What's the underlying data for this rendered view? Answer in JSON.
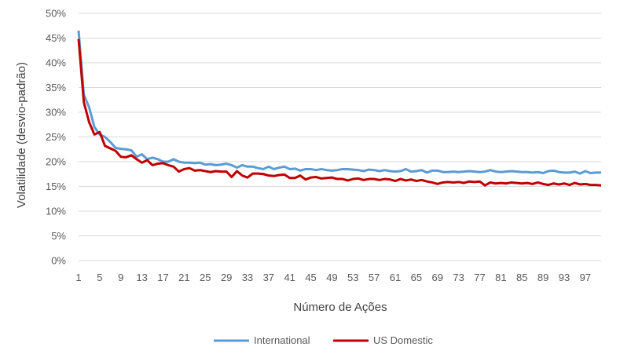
{
  "chart_data": {
    "type": "line",
    "xlabel": "Número de Ações",
    "ylabel": "Volatilidade (desvio-padrão)",
    "ylim": [
      0,
      0.5
    ],
    "xlim": [
      1,
      100
    ],
    "y_ticks": [
      "0%",
      "5%",
      "10%",
      "15%",
      "20%",
      "25%",
      "30%",
      "35%",
      "40%",
      "45%",
      "50%"
    ],
    "x_ticks": [
      1,
      5,
      9,
      13,
      17,
      21,
      25,
      29,
      33,
      37,
      41,
      45,
      49,
      53,
      57,
      61,
      65,
      69,
      73,
      77,
      81,
      85,
      89,
      93,
      97
    ],
    "grid": "horizontal",
    "legend_position": "bottom",
    "x": [
      1,
      2,
      3,
      4,
      5,
      6,
      7,
      8,
      9,
      10,
      11,
      12,
      13,
      14,
      15,
      16,
      17,
      18,
      19,
      20,
      21,
      22,
      23,
      24,
      25,
      26,
      27,
      28,
      29,
      30,
      31,
      32,
      33,
      34,
      35,
      36,
      37,
      38,
      39,
      40,
      41,
      42,
      43,
      44,
      45,
      46,
      47,
      48,
      49,
      50,
      51,
      52,
      53,
      54,
      55,
      56,
      57,
      58,
      59,
      60,
      61,
      62,
      63,
      64,
      65,
      66,
      67,
      68,
      69,
      70,
      71,
      72,
      73,
      74,
      75,
      76,
      77,
      78,
      79,
      80,
      81,
      82,
      83,
      84,
      85,
      86,
      87,
      88,
      89,
      90,
      91,
      92,
      93,
      94,
      95,
      96,
      97,
      98,
      99,
      100
    ],
    "series": [
      {
        "name": "International",
        "color": "#5b9bd5",
        "values": [
          0.465,
          0.335,
          0.31,
          0.27,
          0.255,
          0.25,
          0.24,
          0.228,
          0.226,
          0.225,
          0.223,
          0.21,
          0.215,
          0.205,
          0.208,
          0.205,
          0.2,
          0.2,
          0.205,
          0.2,
          0.198,
          0.198,
          0.197,
          0.198,
          0.194,
          0.195,
          0.193,
          0.194,
          0.196,
          0.193,
          0.188,
          0.193,
          0.19,
          0.19,
          0.187,
          0.185,
          0.19,
          0.185,
          0.188,
          0.19,
          0.185,
          0.186,
          0.182,
          0.185,
          0.185,
          0.183,
          0.185,
          0.183,
          0.182,
          0.183,
          0.185,
          0.185,
          0.184,
          0.183,
          0.181,
          0.184,
          0.183,
          0.181,
          0.183,
          0.181,
          0.18,
          0.181,
          0.185,
          0.18,
          0.181,
          0.183,
          0.178,
          0.182,
          0.182,
          0.179,
          0.179,
          0.18,
          0.179,
          0.18,
          0.181,
          0.18,
          0.179,
          0.18,
          0.183,
          0.18,
          0.179,
          0.18,
          0.181,
          0.18,
          0.179,
          0.179,
          0.178,
          0.179,
          0.177,
          0.181,
          0.182,
          0.179,
          0.178,
          0.178,
          0.18,
          0.176,
          0.181,
          0.177,
          0.178,
          0.178
        ]
      },
      {
        "name": "US Domestic",
        "color": "#c00000",
        "values": [
          0.448,
          0.32,
          0.28,
          0.255,
          0.26,
          0.232,
          0.227,
          0.222,
          0.21,
          0.209,
          0.213,
          0.205,
          0.198,
          0.203,
          0.193,
          0.196,
          0.197,
          0.193,
          0.19,
          0.18,
          0.185,
          0.187,
          0.182,
          0.183,
          0.181,
          0.179,
          0.181,
          0.18,
          0.18,
          0.169,
          0.181,
          0.172,
          0.168,
          0.176,
          0.176,
          0.175,
          0.172,
          0.171,
          0.173,
          0.174,
          0.167,
          0.167,
          0.172,
          0.164,
          0.168,
          0.169,
          0.166,
          0.167,
          0.168,
          0.165,
          0.165,
          0.162,
          0.165,
          0.166,
          0.163,
          0.165,
          0.165,
          0.163,
          0.165,
          0.164,
          0.161,
          0.165,
          0.162,
          0.164,
          0.161,
          0.163,
          0.16,
          0.158,
          0.155,
          0.158,
          0.159,
          0.158,
          0.159,
          0.157,
          0.16,
          0.159,
          0.16,
          0.152,
          0.158,
          0.156,
          0.157,
          0.156,
          0.158,
          0.157,
          0.156,
          0.157,
          0.155,
          0.158,
          0.155,
          0.153,
          0.156,
          0.154,
          0.156,
          0.153,
          0.157,
          0.154,
          0.155,
          0.153,
          0.153,
          0.152
        ]
      }
    ]
  }
}
